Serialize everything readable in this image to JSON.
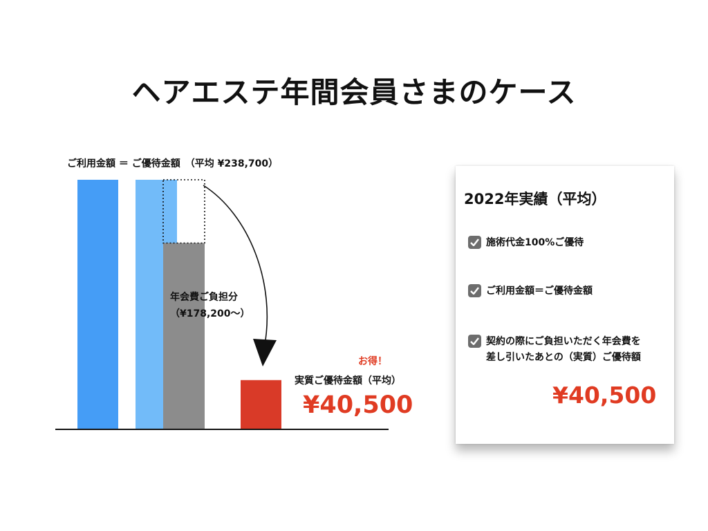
{
  "title": "ヘアエステ年間会員さまのケース",
  "chart_data": {
    "type": "bar",
    "annotation_top": "ご利用金額 ＝ ご優待金額　（平均 ¥238,700）",
    "annual_fee_label_line1": "年会費ご負担分",
    "annual_fee_label_line2": "（¥178,200〜）",
    "otoku_label": "お得！",
    "actual_label": "実質ご優待金額（平均）",
    "actual_amount": "¥40,500",
    "bars": [
      {
        "name": "ご利用金額",
        "value": 238700,
        "color": "#459df6"
      },
      {
        "name": "ご優待金額",
        "value": 238700,
        "color": "#72bbf9"
      },
      {
        "name": "年会費ご負担分",
        "value": 178200,
        "color": "#8c8c8c"
      },
      {
        "name": "実質ご優待金額（平均）",
        "value": 40500,
        "color": "#d93a28"
      }
    ],
    "ylim": [
      0,
      238700
    ]
  },
  "card": {
    "title": "2022年実績（平均）",
    "items": [
      {
        "line1": "施術代金100%ご優待",
        "line2": ""
      },
      {
        "line1": "ご利用金額＝ご優待金額",
        "line2": ""
      },
      {
        "line1": "契約の際にご負担いただく年会費を",
        "line2": "差し引いたあとの（実質）ご優待額"
      }
    ],
    "amount": "¥40,500"
  }
}
